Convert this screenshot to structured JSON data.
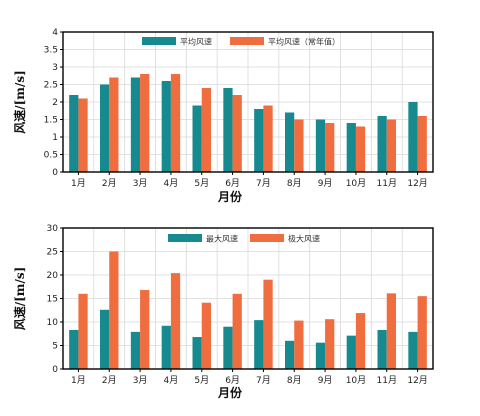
{
  "colors": {
    "series1": "#178a8f",
    "series2": "#ef6d3f",
    "grid": "#d9d9d9",
    "axis": "#000000"
  },
  "chart_data": [
    {
      "type": "bar",
      "categories": [
        "1月",
        "2月",
        "3月",
        "4月",
        "5月",
        "6月",
        "7月",
        "8月",
        "9月",
        "10月",
        "11月",
        "12月"
      ],
      "series": [
        {
          "name": "平均风速",
          "values": [
            2.2,
            2.5,
            2.7,
            2.6,
            1.9,
            2.4,
            1.8,
            1.7,
            1.5,
            1.4,
            1.6,
            2.0
          ]
        },
        {
          "name": "平均风速（常年值）",
          "values": [
            2.1,
            2.7,
            2.8,
            2.8,
            2.4,
            2.2,
            1.9,
            1.5,
            1.4,
            1.3,
            1.5,
            1.6
          ]
        }
      ],
      "xlabel": "月份",
      "ylabel": "风速/[m/s]",
      "ylim": [
        0,
        4
      ],
      "yticks": [
        "0",
        "0.5",
        "1",
        "1.5",
        "2",
        "2.5",
        "3",
        "3.5",
        "4"
      ],
      "grid": true,
      "legend_position": "top-center"
    },
    {
      "type": "bar",
      "categories": [
        "1月",
        "2月",
        "3月",
        "4月",
        "5月",
        "6月",
        "7月",
        "8月",
        "9月",
        "10月",
        "11月",
        "12月"
      ],
      "series": [
        {
          "name": "最大风速",
          "values": [
            8.3,
            12.6,
            7.9,
            9.2,
            6.8,
            9.0,
            10.4,
            6.0,
            5.6,
            7.1,
            8.3,
            7.9
          ]
        },
        {
          "name": "极大风速",
          "values": [
            16.0,
            25.0,
            16.8,
            20.4,
            14.1,
            16.0,
            19.0,
            10.3,
            10.6,
            11.9,
            16.1,
            15.5
          ]
        }
      ],
      "xlabel": "月份",
      "ylabel": "风速/[m/s]",
      "ylim": [
        0,
        30
      ],
      "yticks": [
        "0",
        "5",
        "10",
        "15",
        "20",
        "25",
        "30"
      ],
      "grid": true,
      "legend_position": "top-center"
    }
  ]
}
